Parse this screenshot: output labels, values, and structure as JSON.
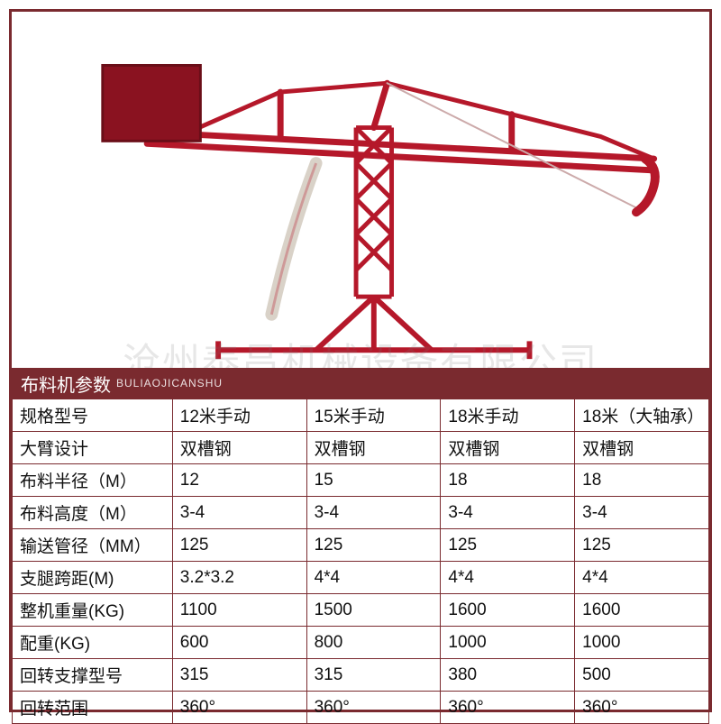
{
  "watermark": "沧州泰昌机械设备有限公司",
  "title": "布料机参数",
  "subtitle": "BULIAOJICANSHU",
  "colors": {
    "frame": "#7a2a2f",
    "crane": "#b5182a",
    "craneDark": "#8a1220",
    "bg": "#ffffff"
  },
  "table": {
    "columns": [
      "规格型号",
      "12米手动",
      "15米手动",
      "18米手动",
      "18米（大轴承）"
    ],
    "rows": [
      [
        "大臂设计",
        "双槽钢",
        "双槽钢",
        "双槽钢",
        "双槽钢"
      ],
      [
        "布料半径（M）",
        "12",
        "15",
        "18",
        "18"
      ],
      [
        "布料高度（M）",
        "3-4",
        "3-4",
        "3-4",
        "3-4"
      ],
      [
        "输送管径（MM）",
        "125",
        "125",
        "125",
        "125"
      ],
      [
        "支腿跨距(M)",
        "3.2*3.2",
        "4*4",
        "4*4",
        "4*4"
      ],
      [
        "整机重量(KG)",
        "1100",
        "1500",
        "1600",
        "1600"
      ],
      [
        "配重(KG)",
        "600",
        "800",
        "1000",
        "1000"
      ],
      [
        "回转支撑型号",
        "315",
        "315",
        "380",
        "500"
      ],
      [
        "回转范围",
        "360°",
        "360°",
        "360°",
        "360°"
      ]
    ]
  }
}
